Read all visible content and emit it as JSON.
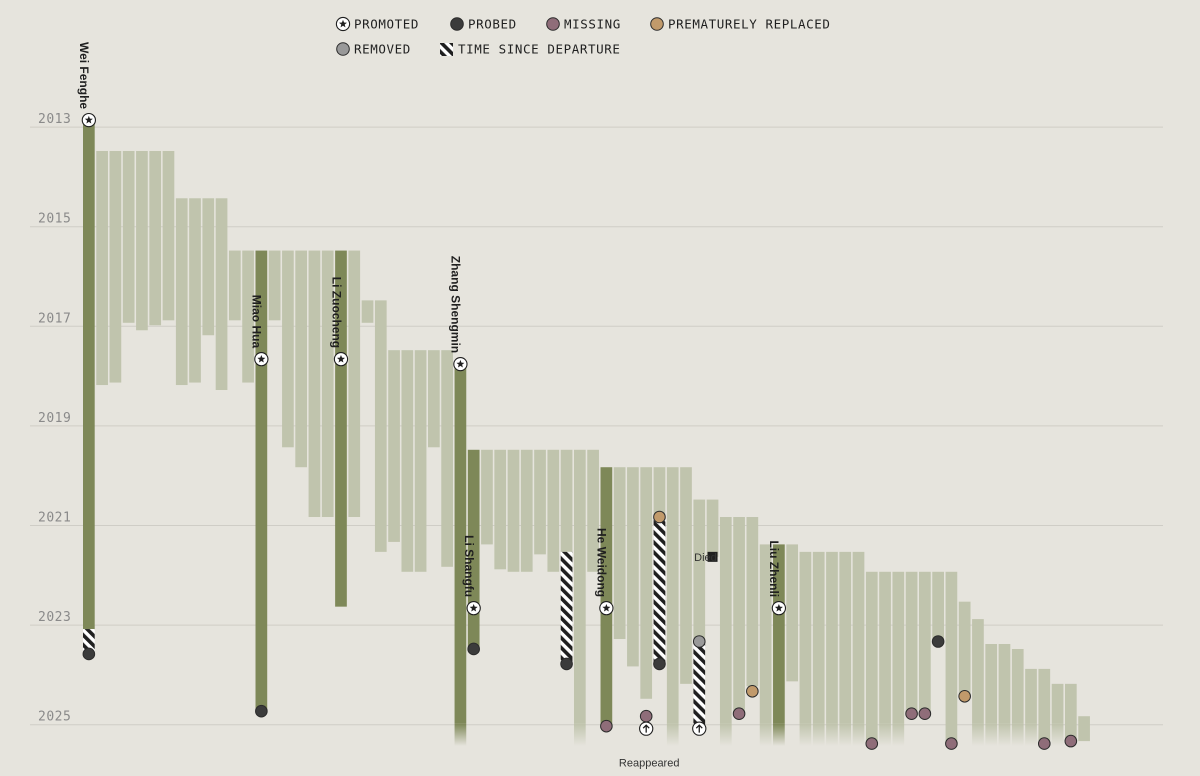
{
  "chart_data": {
    "type": "bar",
    "y_axis": {
      "ticks": [
        "2013",
        "2015",
        "2017",
        "2019",
        "2021",
        "2023",
        "2025"
      ],
      "range": [
        2012.9,
        2025.55
      ],
      "grid": true,
      "direction": "down"
    },
    "legend": {
      "placement": "top",
      "items": [
        {
          "key": "promoted",
          "label": "PROMOTED",
          "icon": "star-in-circle"
        },
        {
          "key": "probed",
          "label": "PROBED",
          "color": "#3b3b3b"
        },
        {
          "key": "missing",
          "label": "MISSING",
          "color": "#8f6d79"
        },
        {
          "key": "replaced",
          "label": "PREMATURELY REPLACED",
          "color": "#c19a6b"
        },
        {
          "key": "removed",
          "label": "REMOVED",
          "color": "#999999"
        },
        {
          "key": "since",
          "label": "TIME SINCE DEPARTURE",
          "pattern": "diagonal-hatch"
        }
      ]
    },
    "colors": {
      "background": "#e6e4dd",
      "bar": "#c0c4ad",
      "highlight": "#7e8858",
      "grid": "#cfcdc6",
      "tick_text": "#8a8a8a"
    },
    "bars": [
      {
        "start": 2013.0,
        "end": 2023.2,
        "highlight": true,
        "name": "Wei Fenghe",
        "promoted": 2013.0,
        "hatch": [
          2023.2,
          2023.7
        ],
        "marker": {
          "type": "probed",
          "at": 2023.7
        }
      },
      {
        "start": 2013.6,
        "end": 2018.3
      },
      {
        "start": 2013.6,
        "end": 2018.25
      },
      {
        "start": 2013.6,
        "end": 2017.05
      },
      {
        "start": 2013.6,
        "end": 2017.2
      },
      {
        "start": 2013.6,
        "end": 2017.1
      },
      {
        "start": 2013.6,
        "end": 2017.0
      },
      {
        "start": 2014.55,
        "end": 2018.3
      },
      {
        "start": 2014.55,
        "end": 2018.25
      },
      {
        "start": 2014.55,
        "end": 2017.3
      },
      {
        "start": 2014.55,
        "end": 2018.4
      },
      {
        "start": 2015.6,
        "end": 2017.0
      },
      {
        "start": 2015.6,
        "end": 2018.25
      },
      {
        "start": 2015.6,
        "end": 2024.85,
        "highlight": true,
        "name": "Miao Hua",
        "promoted": 2017.8,
        "marker": {
          "type": "probed",
          "at": 2024.85
        }
      },
      {
        "start": 2015.6,
        "end": 2017.0
      },
      {
        "start": 2015.6,
        "end": 2019.55
      },
      {
        "start": 2015.6,
        "end": 2019.95
      },
      {
        "start": 2015.6,
        "end": 2020.95
      },
      {
        "start": 2015.6,
        "end": 2020.95
      },
      {
        "start": 2015.6,
        "end": 2022.75,
        "highlight": true,
        "name": "Li Zuocheng",
        "promoted": 2017.8
      },
      {
        "start": 2015.6,
        "end": 2020.95
      },
      {
        "start": 2016.6,
        "end": 2017.05
      },
      {
        "start": 2016.6,
        "end": 2021.65
      },
      {
        "start": 2017.6,
        "end": 2021.45
      },
      {
        "start": 2017.6,
        "end": 2022.05
      },
      {
        "start": 2017.6,
        "end": 2022.05
      },
      {
        "start": 2017.6,
        "end": 2019.55
      },
      {
        "start": 2017.6,
        "end": 2021.95
      },
      {
        "start": 2017.9,
        "end": 2025.55,
        "highlight": true,
        "name": "Zhang Shengmin",
        "promoted": 2017.9,
        "fade": true
      },
      {
        "start": 2019.6,
        "end": 2023.55,
        "highlight": true,
        "name": "Li Shangfu",
        "promoted": 2022.8,
        "marker": {
          "type": "probed",
          "at": 2023.6
        }
      },
      {
        "start": 2019.6,
        "end": 2021.5
      },
      {
        "start": 2019.6,
        "end": 2022.0
      },
      {
        "start": 2019.6,
        "end": 2022.05
      },
      {
        "start": 2019.6,
        "end": 2022.05
      },
      {
        "start": 2019.6,
        "end": 2021.7
      },
      {
        "start": 2019.6,
        "end": 2022.05
      },
      {
        "start": 2019.6,
        "end": 2021.65,
        "hatch": [
          2021.65,
          2023.9
        ],
        "marker": {
          "type": "probed",
          "at": 2023.9
        }
      },
      {
        "start": 2019.6,
        "end": 2025.55,
        "fade": true
      },
      {
        "start": 2019.6,
        "end": 2022.05
      },
      {
        "start": 2019.95,
        "end": 2025.15,
        "highlight": true,
        "name": "He Weidong",
        "promoted": 2022.8,
        "marker": {
          "type": "missing",
          "at": 2025.15
        }
      },
      {
        "start": 2019.95,
        "end": 2023.4
      },
      {
        "start": 2019.95,
        "end": 2023.95
      },
      {
        "start": 2019.95,
        "end": 2024.6,
        "marker": {
          "type": "missing",
          "at": 2024.95
        },
        "arrow": 2025.2
      },
      {
        "start": 2019.95,
        "end": 2020.95,
        "hatch": [
          2020.95,
          2023.9
        ],
        "marker2": {
          "type": "replaced",
          "at": 2020.95
        },
        "marker": {
          "type": "probed",
          "at": 2023.9
        }
      },
      {
        "start": 2019.95,
        "end": 2025.55,
        "fade": true
      },
      {
        "start": 2019.95,
        "end": 2024.3
      },
      {
        "start": 2020.6,
        "end": 2023.5,
        "hatch": [
          2023.5,
          2025.2
        ],
        "marker2": {
          "type": "removed",
          "at": 2023.45
        },
        "arrow": 2025.2
      },
      {
        "start": 2020.6,
        "end": 2021.75,
        "died": true
      },
      {
        "start": 2020.95,
        "end": 2025.55,
        "fade": true
      },
      {
        "start": 2020.95,
        "end": 2024.9,
        "marker": {
          "type": "missing",
          "at": 2024.9
        }
      },
      {
        "start": 2020.95,
        "end": 2024.35,
        "marker": {
          "type": "replaced",
          "at": 2024.45
        }
      },
      {
        "start": 2021.5,
        "end": 2025.55,
        "fade": true
      },
      {
        "start": 2021.5,
        "end": 2025.55,
        "highlight": true,
        "name": "Liu Zhenli",
        "promoted": 2022.8,
        "fade": true
      },
      {
        "start": 2021.5,
        "end": 2024.25
      },
      {
        "start": 2021.65,
        "end": 2025.55,
        "fade": true
      },
      {
        "start": 2021.65,
        "end": 2025.55,
        "fade": true
      },
      {
        "start": 2021.65,
        "end": 2025.55,
        "fade": true
      },
      {
        "start": 2021.65,
        "end": 2025.55,
        "fade": true
      },
      {
        "start": 2021.65,
        "end": 2025.55,
        "fade": true
      },
      {
        "start": 2022.05,
        "end": 2025.5,
        "marker": {
          "type": "missing",
          "at": 2025.5
        }
      },
      {
        "start": 2022.05,
        "end": 2025.55,
        "fade": true
      },
      {
        "start": 2022.05,
        "end": 2025.55,
        "fade": true
      },
      {
        "start": 2022.05,
        "end": 2024.9,
        "marker": {
          "type": "missing",
          "at": 2024.9
        }
      },
      {
        "start": 2022.05,
        "end": 2024.9,
        "marker": {
          "type": "missing",
          "at": 2024.9
        }
      },
      {
        "start": 2022.05,
        "end": 2023.45,
        "marker": {
          "type": "probed",
          "at": 2023.45
        }
      },
      {
        "start": 2022.05,
        "end": 2025.5,
        "marker": {
          "type": "missing",
          "at": 2025.5
        }
      },
      {
        "start": 2022.65,
        "end": 2024.55,
        "marker": {
          "type": "replaced",
          "at": 2024.55
        }
      },
      {
        "start": 2023.0,
        "end": 2025.55,
        "fade": true
      },
      {
        "start": 2023.5,
        "end": 2025.55,
        "fade": true
      },
      {
        "start": 2023.5,
        "end": 2025.55,
        "fade": true
      },
      {
        "start": 2023.6,
        "end": 2025.55,
        "fade": true
      },
      {
        "start": 2024.0,
        "end": 2025.55,
        "fade": true
      },
      {
        "start": 2024.0,
        "end": 2025.5,
        "marker": {
          "type": "missing",
          "at": 2025.5
        }
      },
      {
        "start": 2024.3,
        "end": 2025.55,
        "fade": true
      },
      {
        "start": 2024.3,
        "end": 2025.45,
        "marker": {
          "type": "missing",
          "at": 2025.45
        }
      },
      {
        "start": 2024.95,
        "end": 2025.45
      }
    ],
    "annotations": [
      {
        "text": "Died",
        "bar_index": 48,
        "at": 2021.75
      },
      {
        "text": "Reappeared",
        "bar_index": 42,
        "at": 2025.5
      }
    ]
  }
}
